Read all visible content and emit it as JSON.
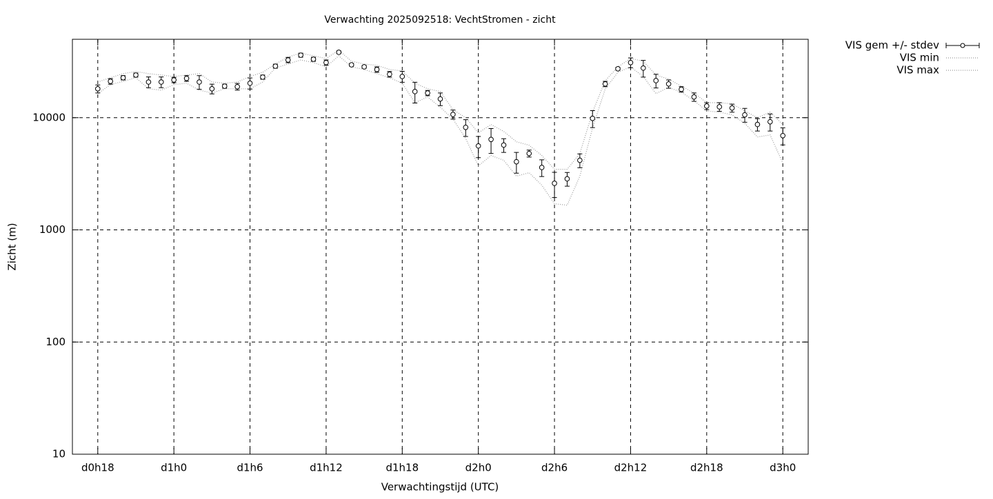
{
  "chart_data": {
    "type": "errorbar",
    "title": "Verwachting 2025092518: VechtStromen - zicht",
    "x_label": "Verwachtingstijd (UTC)",
    "y_label": "Zicht (m)",
    "log_y": true,
    "grid": true,
    "legend": "outside-top-right",
    "xlim": [
      16,
      74
    ],
    "ylim": [
      10,
      50000
    ],
    "xticks": [
      {
        "value": 18,
        "label": "d0h18"
      },
      {
        "value": 24,
        "label": "d1h0"
      },
      {
        "value": 30,
        "label": "d1h6"
      },
      {
        "value": 36,
        "label": "d1h12"
      },
      {
        "value": 42,
        "label": "d1h18"
      },
      {
        "value": 48,
        "label": "d2h0"
      },
      {
        "value": 54,
        "label": "d2h6"
      },
      {
        "value": 60,
        "label": "d2h12"
      },
      {
        "value": 66,
        "label": "d2h18"
      },
      {
        "value": 72,
        "label": "d3h0"
      }
    ],
    "yticks": [
      10,
      100,
      1000,
      10000
    ],
    "x": [
      18,
      19,
      20,
      21,
      22,
      23,
      24,
      25,
      26,
      27,
      28,
      29,
      30,
      31,
      32,
      33,
      34,
      35,
      36,
      37,
      38,
      39,
      40,
      41,
      42,
      43,
      44,
      45,
      46,
      47,
      48,
      49,
      50,
      51,
      52,
      53,
      54,
      55,
      56,
      57,
      58,
      59,
      60,
      61,
      62,
      63,
      64,
      65,
      66,
      67,
      68,
      69,
      70,
      71,
      72
    ],
    "series": [
      {
        "name": "VIS gem +/- stdev",
        "color": "#000000",
        "style": "errorbars",
        "values": [
          18100,
          21100,
          22700,
          24000,
          20800,
          20800,
          21700,
          22400,
          20800,
          18100,
          19100,
          18900,
          20300,
          23000,
          28800,
          32700,
          36100,
          33200,
          31000,
          38300,
          29600,
          28400,
          26900,
          24400,
          23300,
          17100,
          16600,
          14700,
          10700,
          8200,
          5600,
          6400,
          5700,
          4050,
          4800,
          3600,
          2600,
          2850,
          4170,
          9860,
          20000,
          27300,
          31000,
          27700,
          21400,
          20000,
          17900,
          15300,
          12700,
          12500,
          12200,
          10600,
          8700,
          9200,
          6920
        ],
        "errors": [
          1500,
          1200,
          1000,
          1000,
          2300,
          2300,
          1200,
          1300,
          2900,
          1800,
          800,
          1300,
          2300,
          1000,
          1200,
          1800,
          1500,
          1400,
          1700,
          1100,
          800,
          800,
          1500,
          1400,
          2600,
          3600,
          900,
          1900,
          1000,
          1400,
          1200,
          1600,
          800,
          850,
          340,
          610,
          660,
          400,
          590,
          1700,
          1100,
          770,
          3100,
          4700,
          3000,
          1700,
          1000,
          1300,
          900,
          1100,
          1000,
          1500,
          1100,
          1600,
          1200
        ]
      },
      {
        "name": "VIS min",
        "color": "#999999",
        "style": "dotted",
        "values": [
          16400,
          19700,
          21100,
          22700,
          18100,
          17600,
          19700,
          20300,
          17600,
          16600,
          18100,
          18100,
          18100,
          20800,
          27700,
          30100,
          32700,
          31000,
          28400,
          35600,
          28400,
          26900,
          24700,
          22700,
          20300,
          13600,
          15300,
          12400,
          9720,
          6540,
          3720,
          4600,
          4170,
          3010,
          3230,
          2500,
          1710,
          1660,
          3010,
          8090,
          18100,
          25400,
          28400,
          23300,
          16400,
          18600,
          16900,
          14200,
          11500,
          11200,
          10600,
          8930,
          6730,
          7020,
          3940
        ]
      },
      {
        "name": "VIS max",
        "color": "#999999",
        "style": "dotted",
        "values": [
          20800,
          22700,
          24700,
          25800,
          24700,
          24000,
          23300,
          24000,
          24700,
          20800,
          20300,
          20800,
          23300,
          25400,
          30100,
          34700,
          37700,
          35600,
          33700,
          39900,
          31900,
          30100,
          29300,
          26900,
          26100,
          20300,
          18100,
          17100,
          11800,
          10000,
          7330,
          8690,
          7540,
          6100,
          5680,
          4600,
          3470,
          3470,
          4800,
          11200,
          21400,
          28400,
          33700,
          31900,
          24000,
          22100,
          19100,
          16600,
          13600,
          13600,
          13300,
          11500,
          10000,
          11200,
          8690
        ]
      }
    ]
  }
}
